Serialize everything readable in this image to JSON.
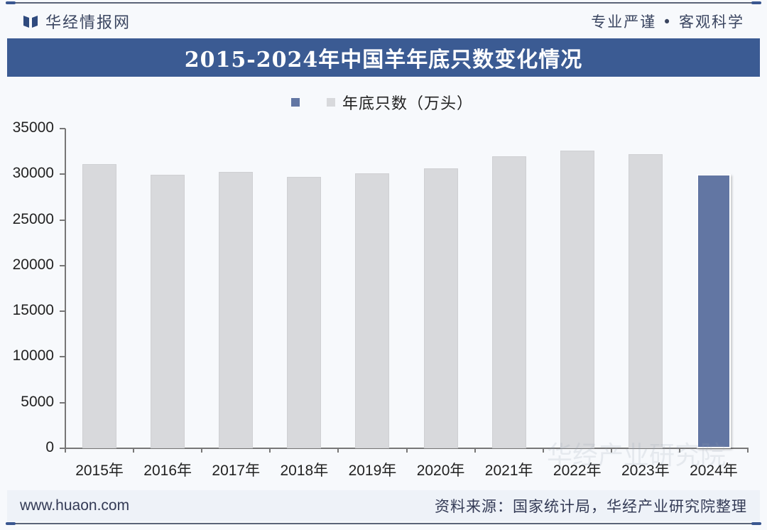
{
  "header": {
    "brand_name": "华经情报网",
    "slogan": "专业严谨 • 客观科学",
    "brand_color": "#3b5b93"
  },
  "title": "2015-2024年中国羊年底只数变化情况",
  "legend": {
    "label": "年底只数（万头）",
    "swatch_highlight": "#6276a3",
    "swatch_default": "#d8d9dc"
  },
  "footer": {
    "url": "www.huaon.com",
    "source": "资料来源：国家统计局，华经产业研究院整理"
  },
  "watermark": {
    "text": "华经产业研究院",
    "url": "www.huaon.com"
  },
  "chart_data": {
    "type": "bar",
    "title": "2015-2024年中国羊年底只数变化情况",
    "xlabel": "",
    "ylabel": "",
    "categories": [
      "2015年",
      "2016年",
      "2017年",
      "2018年",
      "2019年",
      "2020年",
      "2021年",
      "2022年",
      "2023年",
      "2024年"
    ],
    "series": [
      {
        "name": "年底只数（万头）",
        "values": [
          31100,
          29930,
          30232,
          29714,
          30072,
          30655,
          31969,
          32627,
          32233,
          29994
        ]
      }
    ],
    "highlight_index": 9,
    "ylim": [
      0,
      35000
    ],
    "yticks": [
      0,
      5000,
      10000,
      15000,
      20000,
      25000,
      30000,
      35000
    ],
    "ytick_labels": [
      "0",
      "5000",
      "10000",
      "15000",
      "20000",
      "25000",
      "30000",
      "35000"
    ],
    "grid": false,
    "legend_position": "top"
  }
}
